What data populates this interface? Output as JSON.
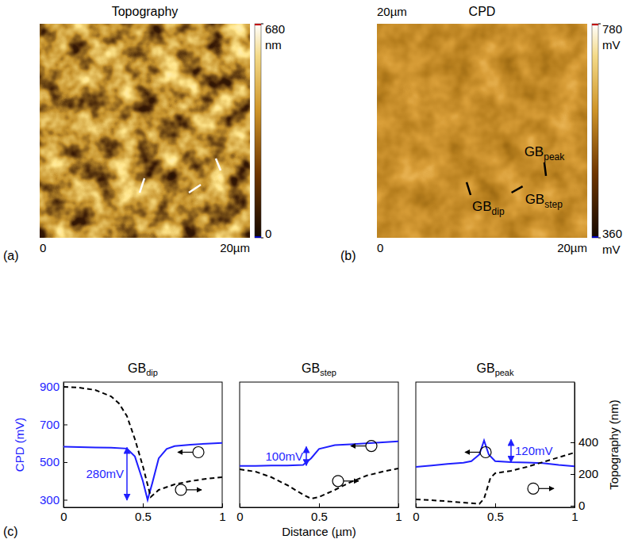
{
  "chart_data": [
    {
      "type": "heatmap",
      "title": "Topography",
      "panel_label": "(a)",
      "xlim": [
        0,
        20
      ],
      "ylim": [
        0,
        20
      ],
      "xticks": [
        0,
        {
          "value": 20,
          "label": "20µm"
        }
      ],
      "colorbar": {
        "range": [
          0,
          680
        ],
        "ticks": [
          0,
          {
            "value": 680,
            "label": "680 nm"
          }
        ]
      },
      "profiles": [
        {
          "color": "#ffffff",
          "start": [
            9.96,
            5.56
          ],
          "end": [
            9.51,
            4.22
          ]
        },
        {
          "color": "#ffffff",
          "start": [
            14.19,
            4.22
          ],
          "end": [
            15.32,
            4.96
          ]
        },
        {
          "color": "#ffffff",
          "start": [
            16.75,
            7.41
          ],
          "end": [
            17.21,
            6.3
          ]
        }
      ]
    },
    {
      "type": "heatmap",
      "title": "CPD",
      "panel_label": "(b)",
      "xlim": [
        0,
        20
      ],
      "ylim": [
        0,
        20
      ],
      "xticks": [
        0,
        {
          "value": 20,
          "label": "20µm"
        }
      ],
      "yticks": [
        {
          "value": 20,
          "label": "20µm"
        }
      ],
      "colorbar": {
        "range": [
          360,
          780
        ],
        "ticks": [
          {
            "value": 360,
            "label": "360 mV"
          },
          {
            "value": 780,
            "label": "780 mV"
          }
        ]
      },
      "profiles": [
        {
          "color": "#000000",
          "label": "GB",
          "subscript": "dip",
          "start": [
            8.53,
            5.19
          ],
          "end": [
            8.91,
            4.0
          ]
        },
        {
          "color": "#000000",
          "label": "GB",
          "subscript": "step",
          "start": [
            12.8,
            4.22
          ],
          "end": [
            13.86,
            4.81
          ]
        },
        {
          "color": "#000000",
          "label": "GB",
          "subscript": "peak",
          "start": [
            15.92,
            7.04
          ],
          "end": [
            16.08,
            5.78
          ]
        }
      ]
    },
    {
      "type": "line",
      "title": {
        "main": "GB",
        "sub": "dip"
      },
      "panel_label": "(c)",
      "ylabel": "CPD (mV)",
      "xlim": [
        0,
        1
      ],
      "xticks": [
        0,
        0.5,
        1
      ],
      "ylim": [
        260,
        925
      ],
      "yticks": [
        300,
        500,
        700,
        900
      ],
      "y2lim": [
        -10,
        780
      ],
      "series": [
        {
          "color": "#1f1fff",
          "line_style": "solid",
          "x": [
            0,
            0.1,
            0.2,
            0.3,
            0.4,
            0.45,
            0.5,
            0.53,
            0.56,
            0.6,
            0.65,
            0.7,
            0.8,
            0.9,
            1.0
          ],
          "values": [
            582,
            580,
            578,
            577,
            572,
            530,
            400,
            300,
            390,
            520,
            570,
            585,
            592,
            598,
            602
          ]
        },
        {
          "color": "#000000",
          "line_style": "dashed",
          "axis": "y2",
          "x": [
            0,
            0.1,
            0.2,
            0.3,
            0.35,
            0.4,
            0.45,
            0.5,
            0.55,
            0.6,
            0.7,
            0.8,
            0.9,
            1.0
          ],
          "values": [
            750,
            745,
            730,
            690,
            645,
            565,
            420,
            250,
            55,
            100,
            135,
            155,
            170,
            180
          ]
        }
      ],
      "annotations": [
        {
          "text": "280mV",
          "x": 0.4,
          "y_from": 578,
          "y_to": 298
        }
      ]
    },
    {
      "type": "line",
      "title": {
        "main": "GB",
        "sub": "step"
      },
      "xlabel": "Distance (µm)",
      "xlim": [
        0,
        1
      ],
      "xticks": [
        0,
        0.5,
        1
      ],
      "ylim": [
        260,
        925
      ],
      "y2lim": [
        -10,
        780
      ],
      "series": [
        {
          "color": "#1f1fff",
          "line_style": "solid",
          "x": [
            0,
            0.1,
            0.2,
            0.3,
            0.4,
            0.45,
            0.5,
            0.6,
            0.7,
            0.8,
            0.9,
            1.0
          ],
          "values": [
            480,
            480,
            482,
            482,
            485,
            520,
            570,
            590,
            595,
            600,
            605,
            610
          ]
        },
        {
          "color": "#000000",
          "line_style": "dashed",
          "axis": "y2",
          "x": [
            0,
            0.1,
            0.2,
            0.3,
            0.4,
            0.45,
            0.5,
            0.6,
            0.7,
            0.8,
            0.9,
            1.0
          ],
          "values": [
            230,
            215,
            180,
            130,
            70,
            45,
            55,
            100,
            150,
            190,
            215,
            235
          ]
        }
      ],
      "annotations": [
        {
          "text": "100mV",
          "x": 0.42,
          "y_from": 482,
          "y_to": 582
        }
      ]
    },
    {
      "type": "line",
      "title": {
        "main": "GB",
        "sub": "peak"
      },
      "y2label": "Topography (nm)",
      "xlim": [
        0,
        1
      ],
      "xticks": [
        0,
        0.5,
        1
      ],
      "ylim": [
        260,
        925
      ],
      "y2lim": [
        -10,
        780
      ],
      "y2ticks": [
        0,
        200,
        400
      ],
      "series": [
        {
          "color": "#1f1fff",
          "line_style": "solid",
          "x": [
            0,
            0.1,
            0.2,
            0.3,
            0.35,
            0.4,
            0.43,
            0.46,
            0.5,
            0.6,
            0.7,
            0.8,
            0.9,
            1.0
          ],
          "values": [
            475,
            482,
            490,
            497,
            505,
            540,
            615,
            540,
            505,
            500,
            498,
            495,
            485,
            478
          ]
        },
        {
          "color": "#000000",
          "line_style": "dashed",
          "axis": "y2",
          "x": [
            0,
            0.1,
            0.2,
            0.3,
            0.4,
            0.43,
            0.47,
            0.5,
            0.6,
            0.7,
            0.8,
            0.9,
            1.0
          ],
          "values": [
            40,
            35,
            28,
            20,
            12,
            45,
            175,
            205,
            220,
            245,
            275,
            305,
            335
          ]
        }
      ],
      "annotations": [
        {
          "text": "120mV",
          "x": 0.6,
          "y_from": 500,
          "y_to": 620
        }
      ]
    }
  ]
}
